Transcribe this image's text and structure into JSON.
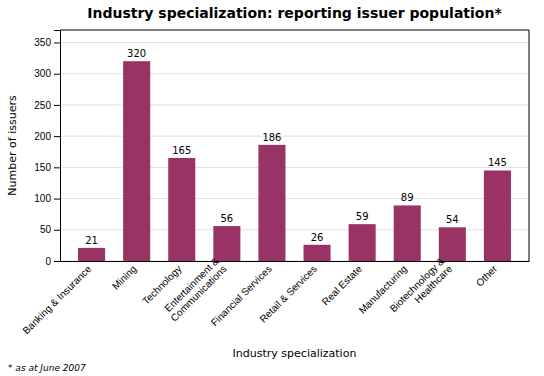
{
  "chart_data": {
    "type": "bar",
    "title": "Industry specialization: reporting issuer population*",
    "xlabel": "Industry specialization",
    "ylabel": "Number of issuers",
    "footnote": "* as at June 2007",
    "categories": [
      "Banking & Insurance",
      "Mining",
      "Technology",
      "Entertainment &\nCommunications",
      "Financial Services",
      "Retail & Services",
      "Real Estate",
      "Manufacturing",
      "Biotechnology &\nHealthcare",
      "Other"
    ],
    "values": [
      21,
      320,
      165,
      56,
      186,
      26,
      59,
      89,
      54,
      145
    ],
    "color": "#993366",
    "ylim": [
      0,
      370
    ],
    "yticks": [
      0,
      50,
      100,
      150,
      200,
      250,
      300,
      350
    ],
    "grid": true,
    "data_labels": true
  }
}
